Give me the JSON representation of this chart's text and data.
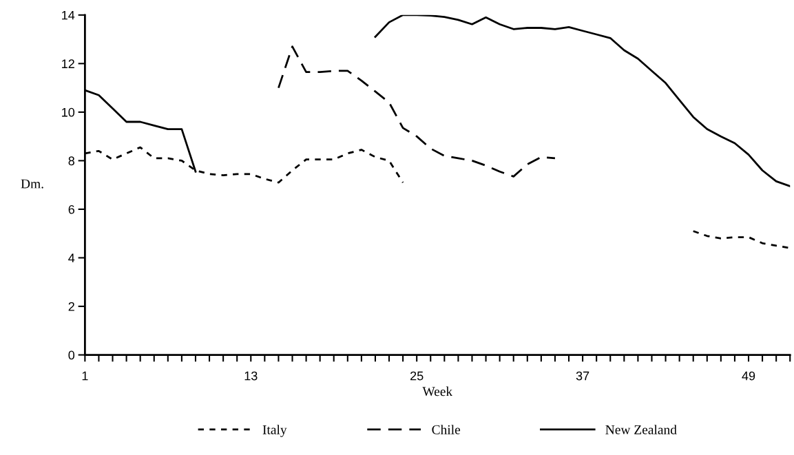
{
  "chart_data": {
    "type": "line",
    "xlabel": "Week",
    "ylabel": "Dm.",
    "xlim": [
      1,
      52
    ],
    "ylim": [
      0,
      14
    ],
    "xticks": [
      1,
      {
        "value": 2,
        "label": null
      },
      {
        "value": 3,
        "label": null
      },
      {
        "value": 4,
        "label": null
      },
      {
        "value": 5,
        "label": null
      },
      {
        "value": 6,
        "label": null
      },
      {
        "value": 7,
        "label": null
      },
      {
        "value": 8,
        "label": null
      },
      {
        "value": 9,
        "label": null
      },
      {
        "value": 10,
        "label": null
      },
      {
        "value": 11,
        "label": null
      },
      {
        "value": 12,
        "label": null
      },
      13,
      {
        "value": 14,
        "label": null
      },
      {
        "value": 15,
        "label": null
      },
      {
        "value": 16,
        "label": null
      },
      {
        "value": 17,
        "label": null
      },
      {
        "value": 18,
        "label": null
      },
      {
        "value": 19,
        "label": null
      },
      {
        "value": 20,
        "label": null
      },
      {
        "value": 21,
        "label": null
      },
      {
        "value": 22,
        "label": null
      },
      {
        "value": 23,
        "label": null
      },
      {
        "value": 24,
        "label": null
      },
      25,
      {
        "value": 26,
        "label": null
      },
      {
        "value": 27,
        "label": null
      },
      {
        "value": 28,
        "label": null
      },
      {
        "value": 29,
        "label": null
      },
      {
        "value": 30,
        "label": null
      },
      {
        "value": 31,
        "label": null
      },
      {
        "value": 32,
        "label": null
      },
      {
        "value": 33,
        "label": null
      },
      {
        "value": 34,
        "label": null
      },
      {
        "value": 35,
        "label": null
      },
      {
        "value": 36,
        "label": null
      },
      37,
      {
        "value": 38,
        "label": null
      },
      {
        "value": 39,
        "label": null
      },
      {
        "value": 40,
        "label": null
      },
      {
        "value": 41,
        "label": null
      },
      {
        "value": 42,
        "label": null
      },
      {
        "value": 43,
        "label": null
      },
      {
        "value": 44,
        "label": null
      },
      {
        "value": 45,
        "label": null
      },
      {
        "value": 46,
        "label": null
      },
      {
        "value": 47,
        "label": null
      },
      {
        "value": 48,
        "label": null
      },
      49,
      {
        "value": 50,
        "label": null
      },
      {
        "value": 51,
        "label": null
      },
      {
        "value": 52,
        "label": null
      }
    ],
    "yticks": [
      0,
      2,
      4,
      6,
      8,
      10,
      12,
      14
    ],
    "grid": false,
    "legend": "bottom",
    "marker": "none",
    "series": [
      {
        "name": "Italy",
        "color": "#000000",
        "line_style": "dotted",
        "x": [
          1,
          2,
          3,
          4,
          5,
          6,
          7,
          8,
          9,
          10,
          11,
          12,
          13,
          14,
          15,
          16,
          17,
          18,
          19,
          20,
          21,
          22,
          23,
          24,
          25,
          45,
          46,
          47,
          48,
          49,
          50,
          51,
          52
        ],
        "values": [
          8.3,
          8.4,
          8.05,
          8.3,
          8.55,
          8.1,
          8.1,
          8.0,
          7.6,
          7.45,
          7.4,
          7.45,
          7.45,
          7.25,
          7.1,
          7.6,
          8.05,
          8.05,
          8.05,
          8.3,
          8.45,
          8.15,
          8.0,
          7.1,
          null,
          5.1,
          4.9,
          4.8,
          4.85,
          4.85,
          4.6,
          4.5,
          4.4
        ]
      },
      {
        "name": "Chile",
        "color": "#000000",
        "line_style": "dashed",
        "x": [
          15,
          16,
          17,
          18,
          19,
          20,
          21,
          22,
          23,
          24,
          25,
          26,
          27,
          28,
          29,
          30,
          31,
          32,
          33,
          34,
          35
        ],
        "values": [
          11.0,
          12.7,
          11.65,
          11.65,
          11.7,
          11.7,
          11.3,
          10.85,
          10.4,
          9.35,
          9.0,
          8.5,
          8.2,
          8.1,
          8.0,
          7.8,
          7.55,
          7.35,
          7.85,
          8.15,
          8.1
        ]
      },
      {
        "name": "New Zealand",
        "color": "#000000",
        "line_style": "solid",
        "x": [
          1,
          2,
          3,
          4,
          5,
          6,
          7,
          8,
          9,
          10,
          22,
          23,
          24,
          25,
          26,
          27,
          28,
          29,
          30,
          31,
          32,
          33,
          34,
          35,
          36,
          37,
          38,
          39,
          40,
          41,
          42,
          43,
          44,
          45,
          46,
          47,
          48,
          49,
          50,
          51,
          52
        ],
        "values": [
          10.9,
          10.7,
          10.15,
          9.6,
          9.6,
          9.45,
          9.3,
          9.3,
          7.55,
          null,
          13.1,
          13.7,
          14.0,
          14.0,
          13.98,
          13.92,
          13.8,
          13.62,
          13.9,
          13.62,
          13.42,
          13.47,
          13.47,
          13.42,
          13.5,
          13.35,
          13.2,
          13.05,
          12.55,
          12.2,
          11.7,
          11.2,
          10.5,
          9.8,
          9.3,
          9.0,
          8.72,
          8.25,
          7.6,
          7.15,
          6.95
        ]
      }
    ]
  }
}
